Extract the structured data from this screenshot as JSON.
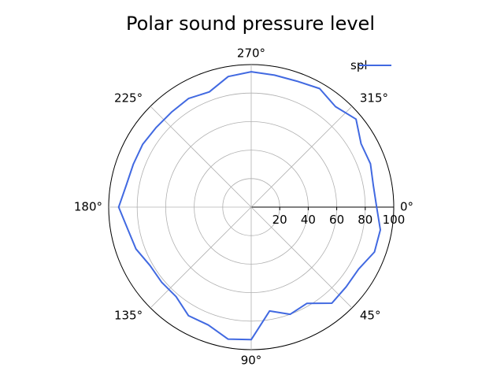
{
  "chart_data": {
    "type": "line",
    "projection": "polar",
    "title": "Polar sound pressure level",
    "angle_tick_labels": [
      "0°",
      "45°",
      "90°",
      "135°",
      "180°",
      "225°",
      "270°",
      "315°"
    ],
    "angle_ticks_deg": [
      0,
      45,
      90,
      135,
      180,
      225,
      270,
      315
    ],
    "angle_direction": "clockwise",
    "angle_zero_location": "east",
    "radial_ticks": [
      20,
      40,
      60,
      80,
      100
    ],
    "radial_tick_labels": [
      "20",
      "40",
      "60",
      "80",
      "100"
    ],
    "rlim": [
      0,
      100
    ],
    "grid": true,
    "legend": {
      "placement": "top-right",
      "entries": [
        "spl"
      ]
    },
    "series": [
      {
        "name": "spl",
        "color": "#4169e1",
        "theta_deg": [
          0,
          10,
          20,
          30,
          40,
          50,
          60,
          70,
          80,
          90,
          100,
          110,
          120,
          130,
          140,
          150,
          160,
          170,
          180,
          190,
          200,
          210,
          220,
          230,
          240,
          250,
          260,
          270,
          280,
          290,
          300,
          310,
          320,
          330,
          340,
          350,
          360
        ],
        "r": [
          88,
          92,
          92,
          87,
          87,
          88,
          78,
          80,
          74,
          93,
          94,
          88,
          88,
          82,
          82,
          82,
          86,
          88,
          93,
          89,
          88,
          88,
          87,
          87,
          88,
          86,
          93,
          95,
          94,
          94,
          96,
          92,
          96,
          89,
          89,
          87,
          88
        ]
      }
    ]
  }
}
